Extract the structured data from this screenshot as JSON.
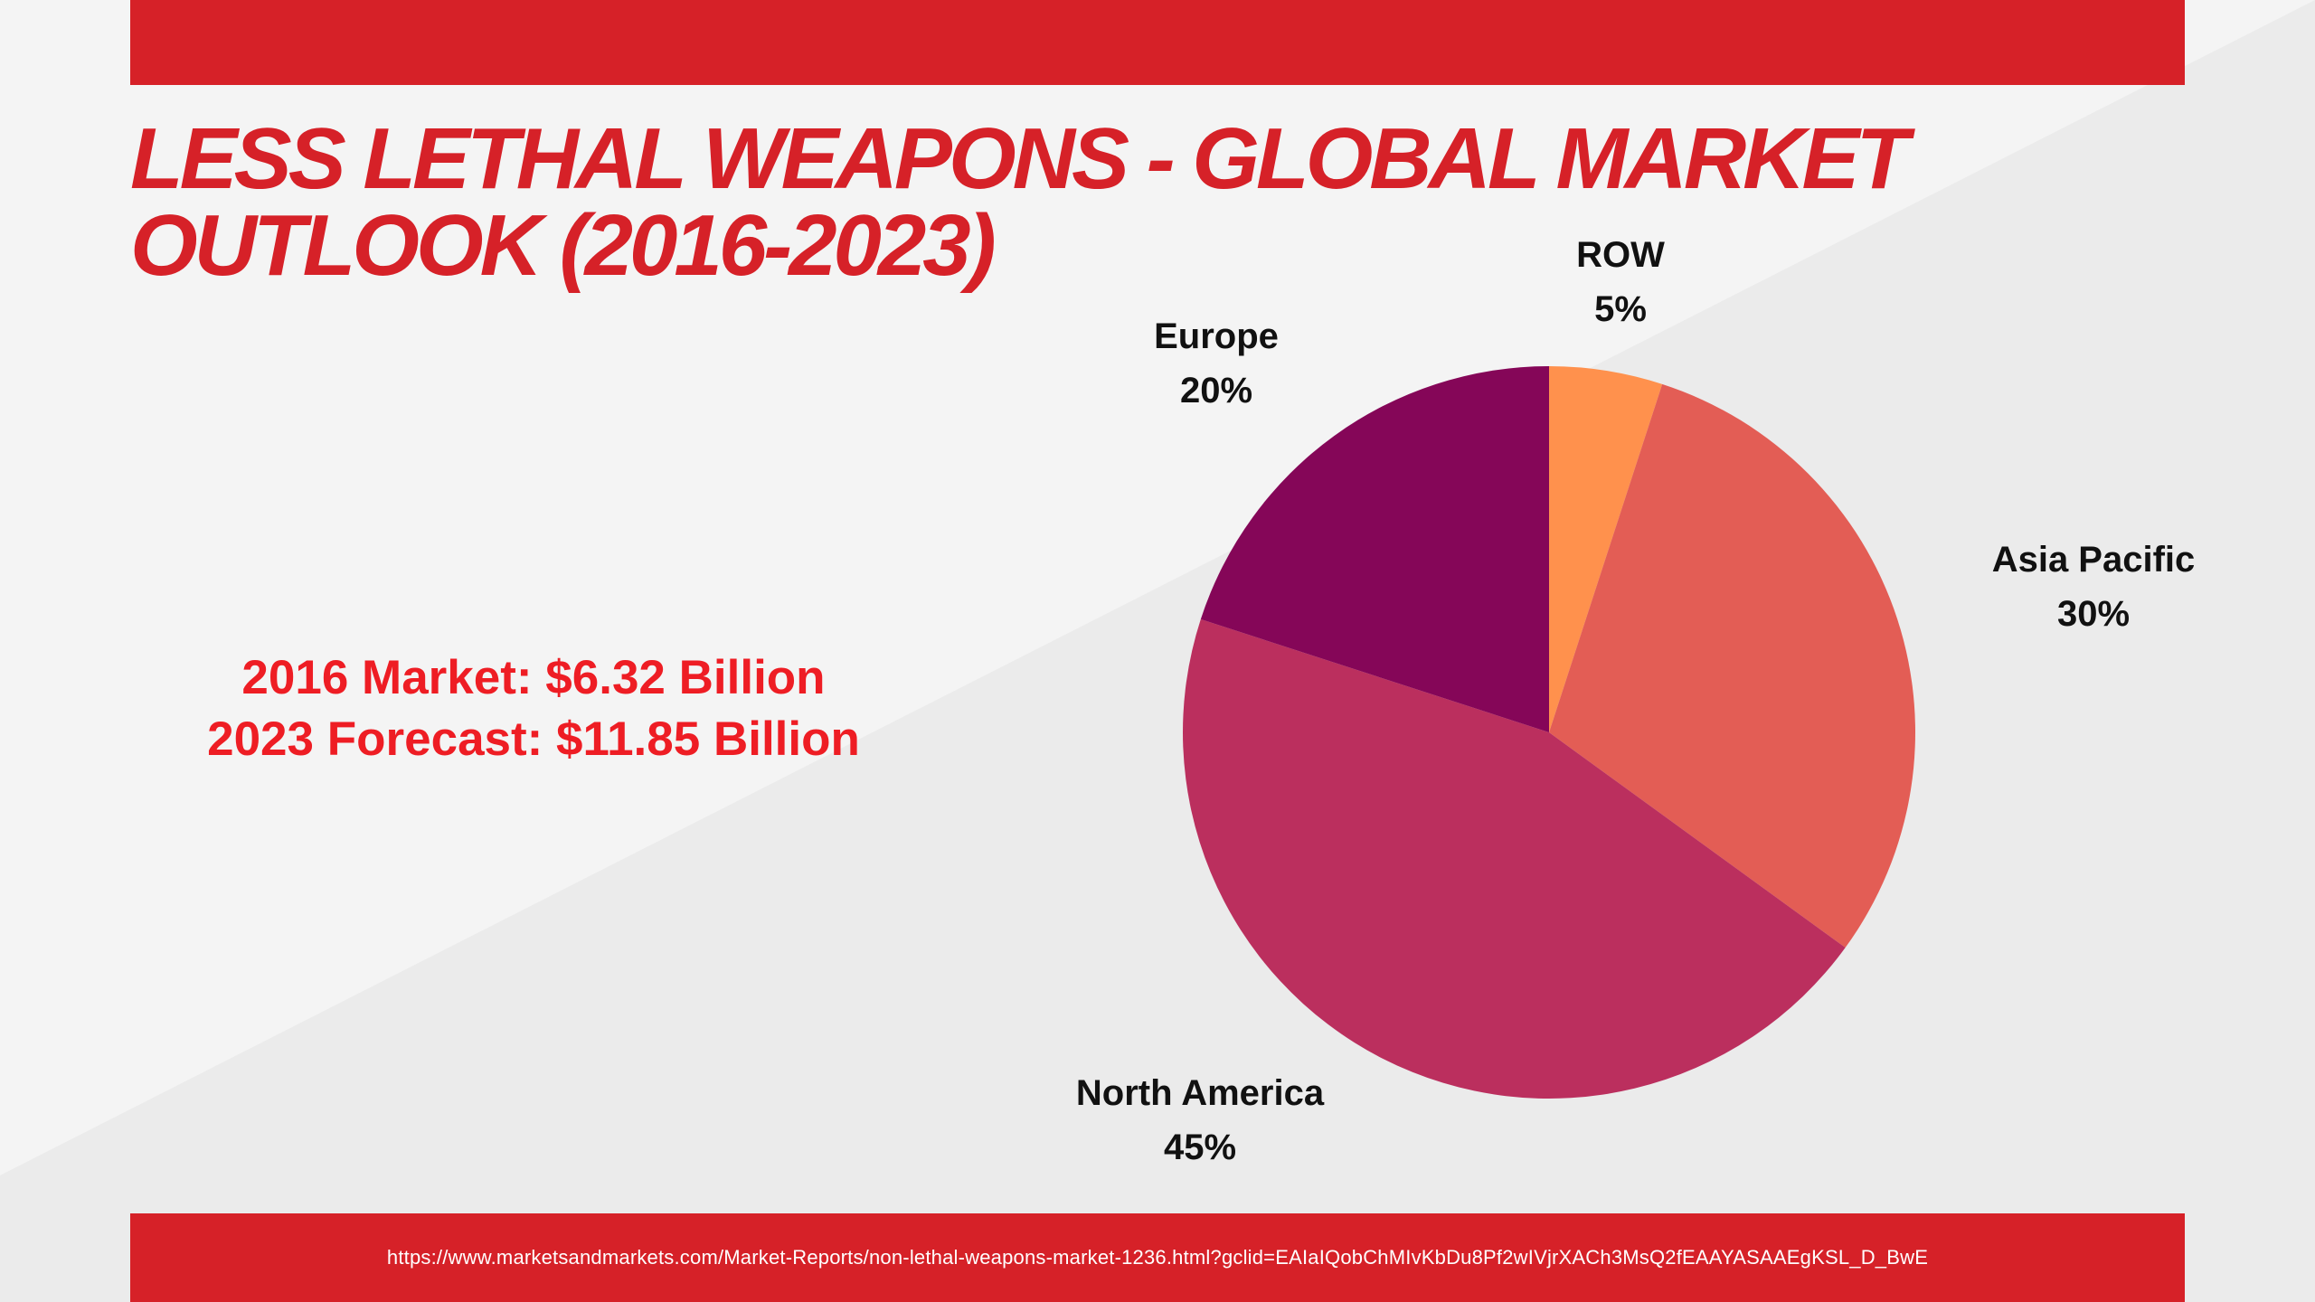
{
  "title": "LESS LETHAL WEAPONS - GLOBAL MARKET OUTLOOK (2016-2023)",
  "market": {
    "line1": "2016 Market: $6.32 Billion",
    "line2": "2023 Forecast: $11.85 Billion"
  },
  "source_url": "https://www.marketsandmarkets.com/Market-Reports/non-lethal-weapons-market-1236.html?gclid=EAIaIQobChMIvKbDu8Pf2wIVjrXACh3MsQ2fEAAYASAAEgKSL_D_BwE",
  "colors": {
    "brand_red": "#d62128",
    "background": "#f4f4f4",
    "diagonal": "#ebebeb"
  },
  "chart_data": {
    "type": "pie",
    "title": "",
    "start_angle_deg": 0,
    "direction": "clockwise",
    "slices": [
      {
        "label": "ROW",
        "value": 5,
        "display": "5%",
        "color": "#ff914d"
      },
      {
        "label": "Asia Pacific",
        "value": 30,
        "display": "30%",
        "color": "#e35d55"
      },
      {
        "label": "North America",
        "value": 45,
        "display": "45%",
        "color": "#bb2f5e"
      },
      {
        "label": "Europe",
        "value": 20,
        "display": "20%",
        "color": "#850658"
      }
    ]
  }
}
